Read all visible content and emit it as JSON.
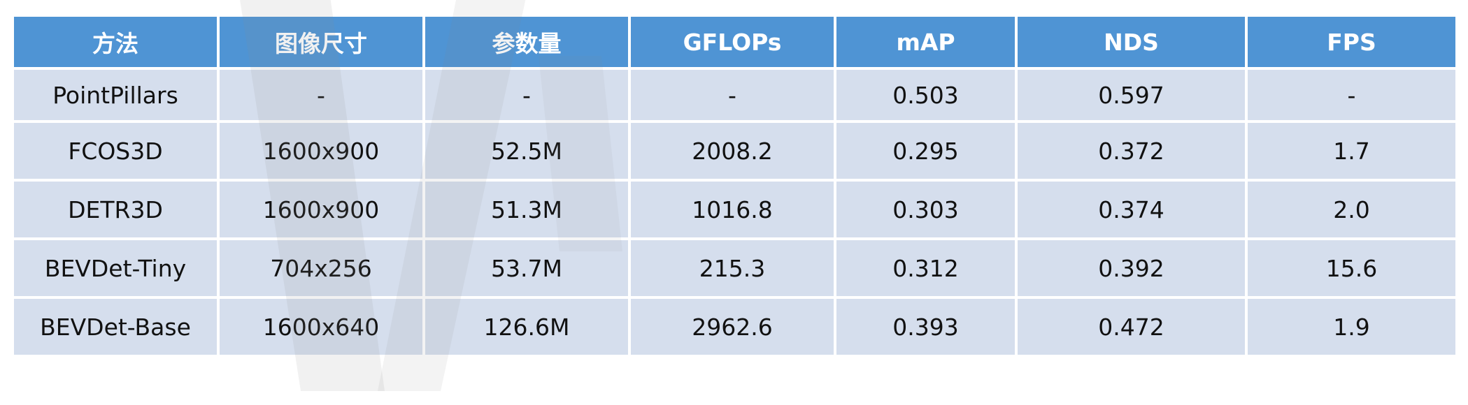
{
  "table": {
    "headers": [
      "方法",
      "图像尺寸",
      "参数量",
      "GFLOPs",
      "mAP",
      "NDS",
      "FPS"
    ],
    "rows": [
      [
        "PointPillars",
        "-",
        "-",
        "-",
        "0.503",
        "0.597",
        "-"
      ],
      [
        "FCOS3D",
        "1600x900",
        "52.5M",
        "2008.2",
        "0.295",
        "0.372",
        "1.7"
      ],
      [
        "DETR3D",
        "1600x900",
        "51.3M",
        "1016.8",
        "0.303",
        "0.374",
        "2.0"
      ],
      [
        "BEVDet-Tiny",
        "704x256",
        "53.7M",
        "215.3",
        "0.312",
        "0.392",
        "15.6"
      ],
      [
        "BEVDet-Base",
        "1600x640",
        "126.6M",
        "2962.6",
        "0.393",
        "0.472",
        "1.9"
      ]
    ]
  },
  "colors": {
    "header_bg": "#4f94d4",
    "header_text": "#ffffff",
    "cell_bg": "#d5deed",
    "cell_text": "#111111"
  }
}
